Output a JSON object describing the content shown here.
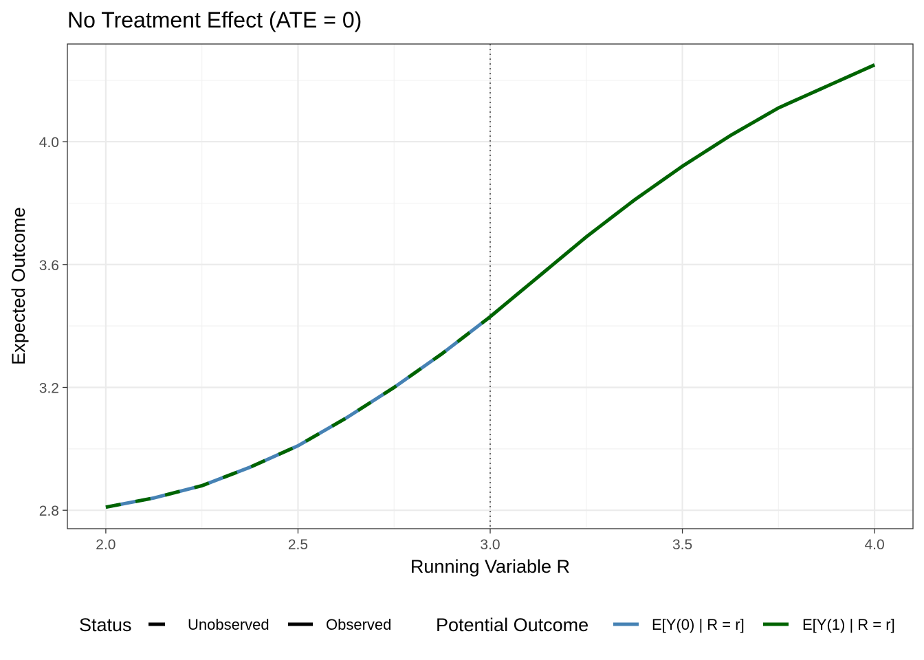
{
  "chart_data": {
    "type": "line",
    "title": "No Treatment Effect (ATE = 0)",
    "xlabel": "Running Variable R",
    "ylabel": "Expected Outcome",
    "xlim": [
      1.9,
      4.1
    ],
    "ylim": [
      2.74,
      4.318
    ],
    "xticks": [
      2.0,
      2.5,
      3.0,
      3.5,
      4.0
    ],
    "xtick_labels": [
      "2.0",
      "2.5",
      "3.0",
      "3.5",
      "4.0"
    ],
    "yticks": [
      2.8,
      3.2,
      3.6,
      4.0
    ],
    "ytick_labels": [
      "2.8",
      "3.2",
      "3.6",
      "4.0"
    ],
    "cutoff": 3.0,
    "grid": true,
    "x": [
      2.0,
      2.125,
      2.25,
      2.375,
      2.5,
      2.625,
      2.75,
      2.875,
      3.0,
      3.125,
      3.25,
      3.375,
      3.5,
      3.625,
      3.75,
      3.875,
      4.0
    ],
    "series": [
      {
        "name": "E[Y(0) | R = r]",
        "color": "#4682B4",
        "observed_below_cutoff": true,
        "values": [
          2.81,
          2.84,
          2.88,
          2.94,
          3.01,
          3.1,
          3.2,
          3.31,
          3.43,
          3.56,
          3.69,
          3.81,
          3.92,
          4.02,
          4.11,
          4.18,
          4.25
        ]
      },
      {
        "name": "E[Y(1) | R = r]",
        "color": "#006400",
        "observed_below_cutoff": false,
        "values": [
          2.81,
          2.84,
          2.88,
          2.94,
          3.01,
          3.1,
          3.2,
          3.31,
          3.43,
          3.56,
          3.69,
          3.81,
          3.92,
          4.02,
          4.11,
          4.18,
          4.25
        ]
      }
    ],
    "legend": {
      "position": "bottom",
      "status_title": "Status",
      "status_items": [
        "Unobserved",
        "Observed"
      ],
      "outcome_title": "Potential Outcome",
      "outcome_items": [
        "E[Y(0) | R = r]",
        "E[Y(1) | R = r]"
      ]
    }
  }
}
